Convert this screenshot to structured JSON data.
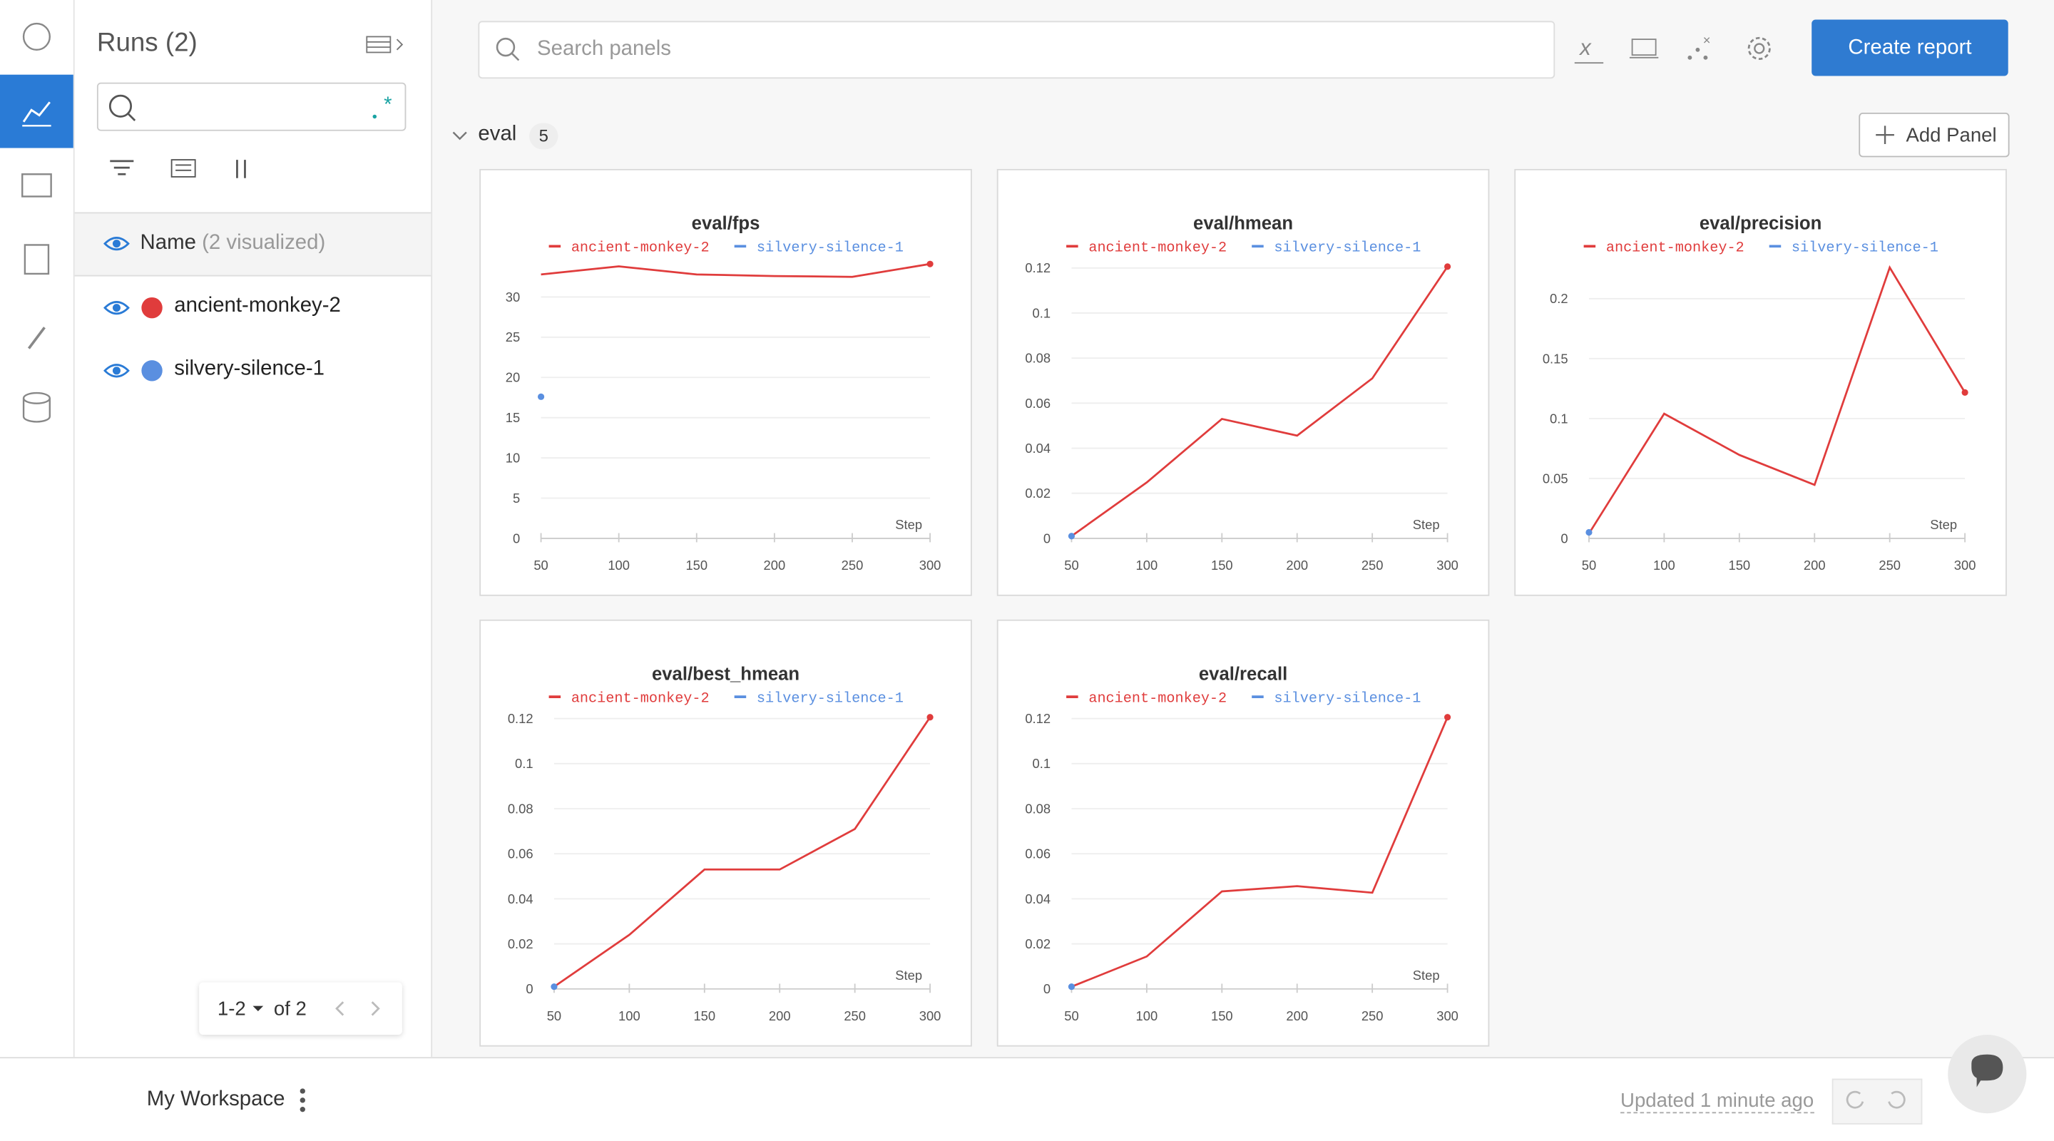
{
  "sidebar": {
    "title": "Runs (2)",
    "column_header": "Name",
    "column_note": "(2 visualized)",
    "runs": [
      {
        "name": "ancient-monkey-2",
        "color": "#e03c3c"
      },
      {
        "name": "silvery-silence-1",
        "color": "#5a8fe0"
      }
    ],
    "pagination": {
      "range": "1-2",
      "total": "of 2"
    }
  },
  "toolbar": {
    "search_placeholder": "Search panels",
    "button": "Create report"
  },
  "section": {
    "name": "eval",
    "count": 5,
    "add_button": "Add Panel"
  },
  "footer": {
    "workspace": "My Workspace",
    "status": "Updated 1 minute ago"
  },
  "chart_data": [
    {
      "type": "line",
      "title": "eval/fps",
      "x_label": "Step",
      "x": [
        50,
        100,
        150,
        200,
        250,
        300
      ],
      "xlim": [
        50,
        300
      ],
      "xticks": [
        50,
        100,
        150,
        200,
        250,
        300
      ],
      "ylim": [
        0,
        35
      ],
      "yticks": [
        0,
        5,
        10,
        15,
        20,
        25,
        30
      ],
      "grid": true,
      "series": [
        {
          "name": "ancient-monkey-2",
          "color": "#e03c3c",
          "values": [
            32.8,
            33.8,
            32.8,
            32.6,
            32.5,
            34.1
          ]
        },
        {
          "name": "silvery-silence-1",
          "color": "#5a8fe0",
          "values": [
            17.6,
            null,
            null,
            null,
            null,
            null
          ]
        }
      ]
    },
    {
      "type": "line",
      "title": "eval/hmean",
      "x_label": "Step",
      "x": [
        50,
        100,
        150,
        200,
        250,
        300
      ],
      "xlim": [
        50,
        300
      ],
      "xticks": [
        50,
        100,
        150,
        200,
        250,
        300
      ],
      "ylim": [
        0,
        0.125
      ],
      "yticks": [
        0,
        0.02,
        0.04,
        0.06,
        0.08,
        0.1,
        0.12
      ],
      "grid": true,
      "series": [
        {
          "name": "ancient-monkey-2",
          "color": "#e03c3c",
          "values": [
            0.001,
            0.0248,
            0.053,
            0.0456,
            0.071,
            0.1206
          ]
        },
        {
          "name": "silvery-silence-1",
          "color": "#5a8fe0",
          "values": [
            0.001,
            null,
            null,
            null,
            null,
            null
          ]
        }
      ]
    },
    {
      "type": "line",
      "title": "eval/precision",
      "x_label": "Step",
      "x": [
        50,
        100,
        150,
        200,
        250,
        300
      ],
      "xlim": [
        50,
        300
      ],
      "xticks": [
        50,
        100,
        150,
        200,
        250,
        300
      ],
      "ylim": [
        0,
        0.235
      ],
      "yticks": [
        0,
        0.05,
        0.1,
        0.15,
        0.2
      ],
      "grid": true,
      "series": [
        {
          "name": "ancient-monkey-2",
          "color": "#e03c3c",
          "values": [
            0.004,
            0.104,
            0.0696,
            0.0446,
            0.226,
            0.1217
          ]
        },
        {
          "name": "silvery-silence-1",
          "color": "#5a8fe0",
          "values": [
            0.005,
            null,
            null,
            null,
            null,
            null
          ]
        }
      ]
    },
    {
      "type": "line",
      "title": "eval/best_hmean",
      "x_label": "Step",
      "x": [
        50,
        100,
        150,
        200,
        250,
        300
      ],
      "xlim": [
        50,
        300
      ],
      "xticks": [
        50,
        100,
        150,
        200,
        250,
        300
      ],
      "ylim": [
        0,
        0.125
      ],
      "yticks": [
        0,
        0.02,
        0.04,
        0.06,
        0.08,
        0.1,
        0.12
      ],
      "grid": true,
      "series": [
        {
          "name": "ancient-monkey-2",
          "color": "#e03c3c",
          "values": [
            0.001,
            0.024,
            0.053,
            0.053,
            0.071,
            0.1206
          ]
        },
        {
          "name": "silvery-silence-1",
          "color": "#5a8fe0",
          "values": [
            0.001,
            null,
            null,
            null,
            null,
            null
          ]
        }
      ]
    },
    {
      "type": "line",
      "title": "eval/recall",
      "x_label": "Step",
      "x": [
        50,
        100,
        150,
        200,
        250,
        300
      ],
      "xlim": [
        50,
        300
      ],
      "xticks": [
        50,
        100,
        150,
        200,
        250,
        300
      ],
      "ylim": [
        0,
        0.125
      ],
      "yticks": [
        0,
        0.02,
        0.04,
        0.06,
        0.08,
        0.1,
        0.12
      ],
      "grid": true,
      "series": [
        {
          "name": "ancient-monkey-2",
          "color": "#e03c3c",
          "values": [
            0.001,
            0.0144,
            0.0433,
            0.0456,
            0.0427,
            0.1206
          ]
        },
        {
          "name": "silvery-silence-1",
          "color": "#5a8fe0",
          "values": [
            0.001,
            null,
            null,
            null,
            null,
            null
          ]
        }
      ]
    }
  ]
}
